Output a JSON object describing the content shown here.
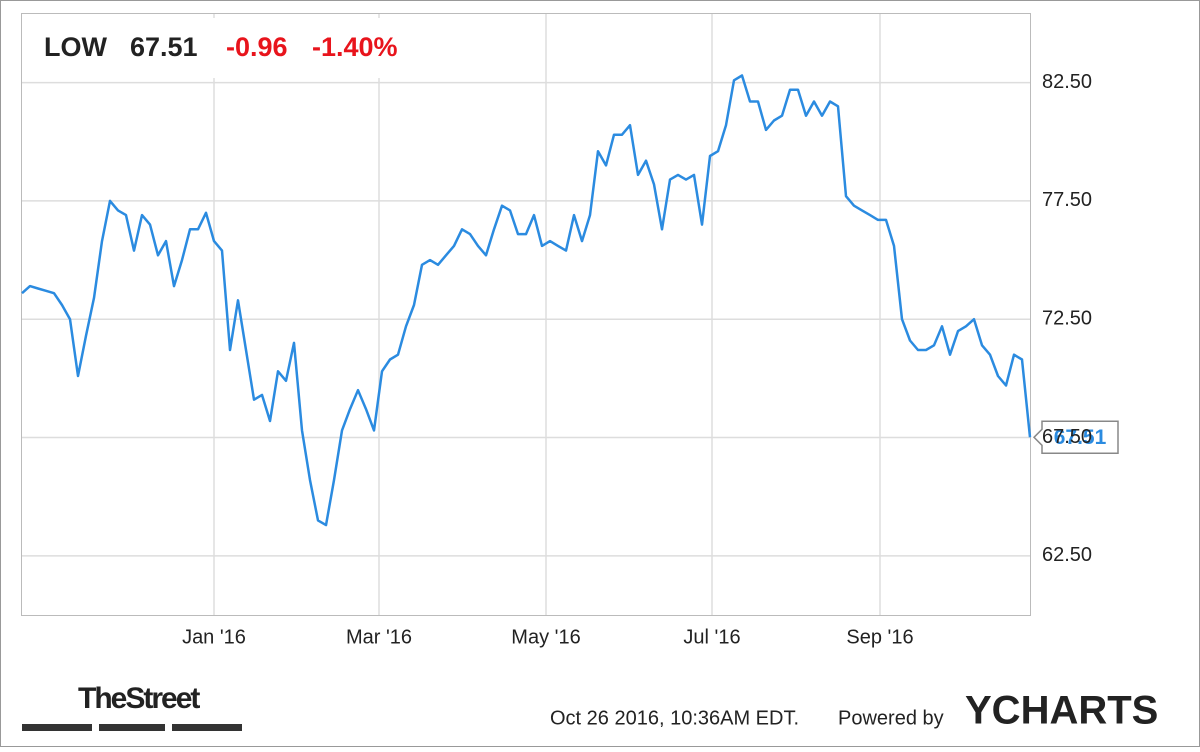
{
  "header": {
    "ticker": "LOW",
    "price": "67.51",
    "change": "-0.96",
    "change_pct": "-1.40%"
  },
  "chart_data": {
    "type": "line",
    "color": "#2b8be0",
    "grid": true,
    "y_axis_side": "right",
    "values": [
      73.6,
      73.9,
      73.8,
      73.7,
      73.6,
      73.1,
      72.5,
      70.1,
      71.8,
      73.4,
      75.8,
      77.5,
      77.1,
      76.9,
      75.4,
      76.9,
      76.5,
      75.2,
      75.8,
      73.9,
      75.0,
      76.3,
      76.3,
      77.0,
      75.8,
      75.4,
      71.2,
      73.3,
      71.2,
      69.1,
      69.3,
      68.2,
      70.3,
      69.9,
      71.5,
      67.8,
      65.7,
      64.0,
      63.8,
      65.7,
      67.8,
      68.7,
      69.5,
      68.7,
      67.8,
      70.3,
      70.8,
      71.0,
      72.2,
      73.1,
      74.8,
      75.0,
      74.8,
      75.2,
      75.6,
      76.3,
      76.1,
      75.6,
      75.2,
      76.3,
      77.3,
      77.1,
      76.1,
      76.1,
      76.9,
      75.6,
      75.8,
      75.6,
      75.4,
      76.9,
      75.8,
      76.9,
      79.6,
      79.0,
      80.3,
      80.3,
      80.7,
      78.6,
      79.2,
      78.2,
      76.3,
      78.4,
      78.6,
      78.4,
      78.6,
      76.5,
      79.4,
      79.6,
      80.7,
      82.6,
      82.8,
      81.7,
      81.7,
      80.5,
      80.9,
      81.1,
      82.2,
      82.2,
      81.1,
      81.7,
      81.1,
      81.7,
      81.5,
      77.7,
      77.3,
      77.1,
      76.9,
      76.7,
      76.7,
      75.6,
      72.5,
      71.6,
      71.2,
      71.2,
      71.4,
      72.2,
      71.0,
      72.0,
      72.2,
      72.5,
      71.4,
      71.0,
      70.1,
      69.7,
      71.0,
      70.8,
      67.51
    ],
    "xlim": [
      0,
      126
    ],
    "xticks": [
      {
        "value": 24,
        "label": "Jan '16"
      },
      {
        "value": 44.625,
        "label": "Mar '16"
      },
      {
        "value": 65.5,
        "label": "May '16"
      },
      {
        "value": 86.25,
        "label": "Jul '16"
      },
      {
        "value": 107.25,
        "label": "Sep '16"
      }
    ],
    "ylim": [
      60.0,
      85.4
    ],
    "yticks": [
      {
        "value": 62.5,
        "label": "62.50"
      },
      {
        "value": 67.5,
        "label": "67.50"
      },
      {
        "value": 72.5,
        "label": "72.50"
      },
      {
        "value": 77.5,
        "label": "77.50"
      },
      {
        "value": 82.5,
        "label": "82.50"
      }
    ]
  },
  "footer": {
    "publisher": "TheStreet",
    "timestamp": "Oct 26 2016, 10:36AM EDT.",
    "powered_by": "Powered by",
    "brand": "YCHARTS"
  }
}
